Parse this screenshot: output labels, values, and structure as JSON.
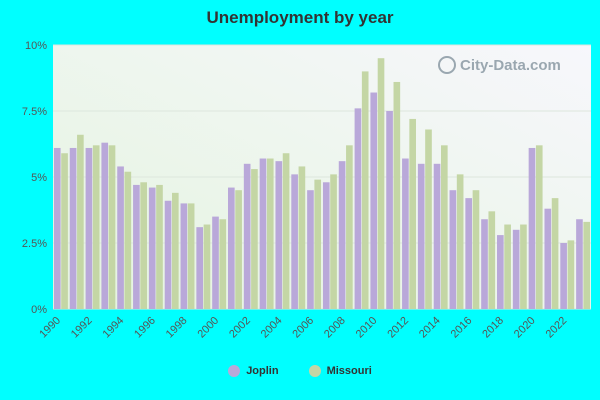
{
  "title": "Unemployment by year",
  "watermark": "City-Data.com",
  "colors": {
    "background": "#00FFFF",
    "joplin": "#b9a8d9",
    "missouri": "#c4d6a5",
    "plot_bg_top": "#f7f7fc",
    "plot_bg_bottom": "#e4f4df"
  },
  "legend": [
    {
      "name": "Joplin",
      "color": "#b9a8d9"
    },
    {
      "name": "Missouri",
      "color": "#c4d6a5"
    }
  ],
  "chart_data": {
    "type": "bar",
    "title": "Unemployment by year",
    "categories": [
      1990,
      1991,
      1992,
      1993,
      1994,
      1995,
      1996,
      1997,
      1998,
      1999,
      2000,
      2001,
      2002,
      2003,
      2004,
      2005,
      2006,
      2007,
      2008,
      2009,
      2010,
      2011,
      2012,
      2013,
      2014,
      2015,
      2016,
      2017,
      2018,
      2019,
      2020,
      2021,
      2022,
      2023
    ],
    "x_tick_labels": [
      "1990",
      "1992",
      "1994",
      "1996",
      "1998",
      "2000",
      "2002",
      "2004",
      "2006",
      "2008",
      "2010",
      "2012",
      "2014",
      "2016",
      "2018",
      "2020",
      "2022"
    ],
    "y_tick_labels": [
      "0%",
      "2.5%",
      "5%",
      "7.5%",
      "10%"
    ],
    "y_ticks": [
      0,
      2.5,
      5,
      7.5,
      10
    ],
    "ylim": [
      0,
      10
    ],
    "series": [
      {
        "name": "Joplin",
        "values": [
          6.1,
          6.1,
          6.1,
          6.3,
          5.4,
          4.7,
          4.6,
          4.1,
          4.0,
          3.1,
          3.5,
          4.6,
          5.5,
          5.7,
          5.6,
          5.1,
          4.5,
          4.8,
          5.6,
          7.6,
          8.2,
          7.5,
          5.7,
          5.5,
          5.5,
          4.5,
          4.2,
          3.4,
          2.8,
          3.0,
          6.1,
          3.8,
          2.5,
          3.4
        ]
      },
      {
        "name": "Missouri",
        "values": [
          5.9,
          6.6,
          6.2,
          6.2,
          5.2,
          4.8,
          4.7,
          4.4,
          4.0,
          3.2,
          3.4,
          4.5,
          5.3,
          5.7,
          5.9,
          5.4,
          4.9,
          5.1,
          6.2,
          9.0,
          9.5,
          8.6,
          7.2,
          6.8,
          6.2,
          5.1,
          4.5,
          3.7,
          3.2,
          3.2,
          6.2,
          4.2,
          2.6,
          3.3
        ]
      }
    ],
    "grid": true,
    "legend_position": "bottom-center"
  }
}
